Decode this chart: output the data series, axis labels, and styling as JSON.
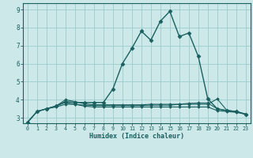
{
  "title": "",
  "xlabel": "Humidex (Indice chaleur)",
  "xlim": [
    -0.5,
    23.5
  ],
  "ylim": [
    2.7,
    9.35
  ],
  "yticks": [
    3,
    4,
    5,
    6,
    7,
    8,
    9
  ],
  "xticks": [
    0,
    1,
    2,
    3,
    4,
    5,
    6,
    7,
    8,
    9,
    10,
    11,
    12,
    13,
    14,
    15,
    16,
    17,
    18,
    19,
    20,
    21,
    22,
    23
  ],
  "background_color": "#cce8e8",
  "grid_color": "#99cccc",
  "line_color": "#1a6060",
  "lines": [
    {
      "x": [
        0,
        1,
        2,
        3,
        4,
        5,
        6,
        7,
        8,
        9,
        10,
        11,
        12,
        13,
        14,
        15,
        16,
        17,
        18,
        19,
        20,
        21,
        22,
        23
      ],
      "y": [
        2.75,
        3.35,
        3.5,
        3.65,
        3.9,
        3.85,
        3.85,
        3.85,
        3.85,
        4.6,
        6.0,
        6.85,
        7.8,
        7.3,
        8.35,
        8.9,
        7.5,
        7.7,
        6.4,
        4.05,
        3.5,
        3.4,
        3.35,
        3.2
      ],
      "marker": "D",
      "markersize": 2.5,
      "linewidth": 1.0
    },
    {
      "x": [
        0,
        1,
        2,
        3,
        4,
        5,
        6,
        7,
        8,
        9,
        10,
        11,
        12,
        13,
        14,
        15,
        16,
        17,
        18,
        19,
        20,
        21,
        22,
        23
      ],
      "y": [
        2.75,
        3.35,
        3.5,
        3.65,
        3.85,
        3.75,
        3.65,
        3.6,
        3.6,
        3.6,
        3.6,
        3.6,
        3.6,
        3.6,
        3.6,
        3.6,
        3.6,
        3.6,
        3.6,
        3.6,
        3.4,
        3.35,
        3.3,
        3.2
      ],
      "marker": "D",
      "markersize": 1.8,
      "linewidth": 0.8
    },
    {
      "x": [
        0,
        1,
        2,
        3,
        4,
        5,
        6,
        7,
        8,
        9,
        10,
        11,
        12,
        13,
        14,
        15,
        16,
        17,
        18,
        19,
        20,
        21,
        22,
        23
      ],
      "y": [
        2.75,
        3.35,
        3.5,
        3.6,
        3.75,
        3.75,
        3.7,
        3.68,
        3.68,
        3.68,
        3.68,
        3.68,
        3.68,
        3.7,
        3.7,
        3.7,
        3.75,
        3.8,
        3.82,
        3.82,
        3.5,
        3.4,
        3.35,
        3.2
      ],
      "marker": "D",
      "markersize": 1.8,
      "linewidth": 0.8
    },
    {
      "x": [
        2,
        3,
        4,
        5,
        6,
        7,
        8,
        9,
        10,
        11,
        12,
        13,
        14,
        15,
        16,
        17,
        18,
        19,
        20,
        21,
        22,
        23
      ],
      "y": [
        3.5,
        3.65,
        4.0,
        3.9,
        3.78,
        3.72,
        3.72,
        3.72,
        3.72,
        3.72,
        3.72,
        3.75,
        3.75,
        3.75,
        3.75,
        3.75,
        3.75,
        3.75,
        4.05,
        3.42,
        3.35,
        3.2
      ],
      "marker": "D",
      "markersize": 1.8,
      "linewidth": 0.8
    }
  ]
}
